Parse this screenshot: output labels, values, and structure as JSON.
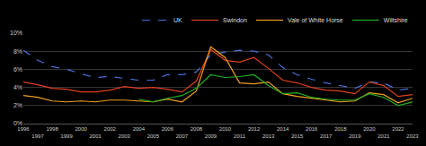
{
  "chart_data": {
    "type": "line",
    "x": [
      1996,
      1997,
      1998,
      1999,
      2000,
      2001,
      2002,
      2003,
      2004,
      2005,
      2006,
      2007,
      2008,
      2009,
      2010,
      2011,
      2012,
      2013,
      2014,
      2015,
      2016,
      2017,
      2018,
      2019,
      2020,
      2021,
      2022,
      2023
    ],
    "series": [
      {
        "name": "UK",
        "color": "#4a6fd8",
        "line_style": "dashed",
        "values": [
          8.1,
          7.0,
          6.3,
          6.0,
          5.5,
          5.1,
          5.2,
          5.0,
          4.8,
          4.8,
          5.4,
          5.4,
          5.7,
          7.6,
          7.9,
          8.1,
          8.0,
          7.6,
          6.2,
          5.4,
          4.9,
          4.5,
          4.2,
          3.9,
          4.6,
          4.5,
          3.7,
          3.9
        ]
      },
      {
        "name": "Swindon",
        "color": "#e0401c",
        "line_style": "solid",
        "values": [
          4.6,
          4.3,
          3.9,
          3.8,
          3.5,
          3.5,
          3.7,
          4.1,
          3.9,
          4.0,
          3.8,
          3.5,
          4.7,
          8.2,
          7.0,
          6.8,
          7.3,
          6.1,
          4.8,
          4.5,
          4.0,
          3.7,
          3.6,
          3.3,
          4.6,
          4.2,
          3.0,
          3.2
        ]
      },
      {
        "name": "Vale of White Horse",
        "color": "#f0a020",
        "line_style": "solid",
        "values": [
          3.1,
          2.9,
          2.5,
          2.4,
          2.5,
          2.4,
          2.6,
          2.6,
          2.5,
          2.4,
          2.7,
          2.4,
          3.6,
          8.5,
          7.3,
          4.5,
          4.4,
          4.6,
          3.3,
          3.0,
          2.8,
          2.6,
          2.4,
          2.5,
          3.4,
          3.2,
          2.3,
          2.8
        ]
      },
      {
        "name": "Wiltshire",
        "color": "#22b022",
        "line_style": "solid",
        "values": [
          null,
          null,
          null,
          null,
          null,
          null,
          null,
          null,
          2.7,
          2.4,
          2.8,
          3.1,
          3.9,
          5.4,
          5.1,
          5.2,
          5.4,
          4.2,
          3.3,
          3.4,
          2.9,
          2.7,
          2.6,
          2.6,
          3.3,
          2.9,
          2.0,
          2.4
        ]
      }
    ],
    "xlim": [
      1996,
      2023
    ],
    "xticks": [
      1996,
      1997,
      1998,
      1999,
      2000,
      2001,
      2002,
      2003,
      2004,
      2005,
      2006,
      2007,
      2008,
      2009,
      2010,
      2011,
      2012,
      2013,
      2014,
      2015,
      2016,
      2017,
      2018,
      2019,
      2020,
      2021,
      2022,
      2023
    ],
    "ylim": [
      0,
      10
    ],
    "yticks": [
      {
        "value": 0,
        "label": "0%"
      },
      {
        "value": 2,
        "label": "2%"
      },
      {
        "value": 4,
        "label": "4%"
      },
      {
        "value": 6,
        "label": "6%"
      },
      {
        "value": 8,
        "label": "8%"
      },
      {
        "value": 10,
        "label": "10%"
      }
    ],
    "grid": true,
    "legend": "top-right"
  }
}
